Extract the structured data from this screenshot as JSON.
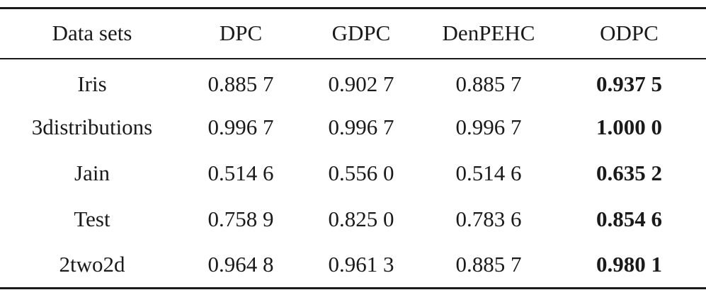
{
  "table": {
    "headers": [
      "Data sets",
      "DPC",
      "GDPC",
      "DenPEHC",
      "ODPC"
    ],
    "rows": [
      {
        "dataset": "Iris",
        "dpc": "0.885 7",
        "gdpc": "0.902 7",
        "denpehc": "0.885 7",
        "odpc": "0.937 5"
      },
      {
        "dataset": "3distributions",
        "dpc": "0.996 7",
        "gdpc": "0.996 7",
        "denpehc": "0.996 7",
        "odpc": "1.000 0"
      },
      {
        "dataset": "Jain",
        "dpc": "0.514 6",
        "gdpc": "0.556 0",
        "denpehc": "0.514 6",
        "odpc": "0.635 2"
      },
      {
        "dataset": "Test",
        "dpc": "0.758 9",
        "gdpc": "0.825 0",
        "denpehc": "0.783 6",
        "odpc": "0.854 6"
      },
      {
        "dataset": "2two2d",
        "dpc": "0.964 8",
        "gdpc": "0.961 3",
        "denpehc": "0.885 7",
        "odpc": "0.980 1"
      }
    ]
  }
}
